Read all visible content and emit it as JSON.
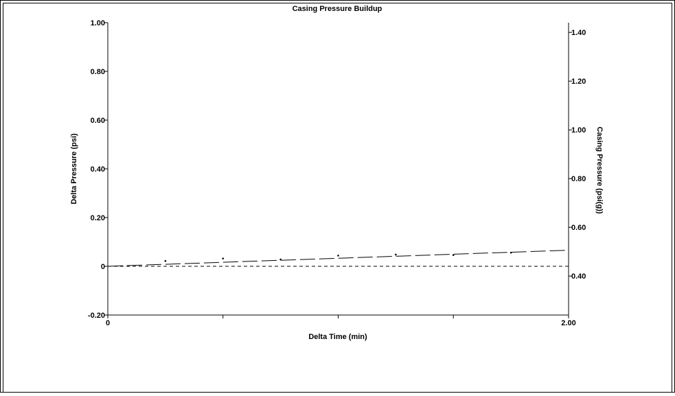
{
  "chart_data": {
    "type": "line",
    "title": "Casing Pressure Buildup",
    "xlabel": "Delta Time (min)",
    "ylabel": "Delta Pressure (psi)",
    "y2label": "Casing Pressure (psi(g))",
    "xlim": [
      0,
      2.0
    ],
    "ylim": [
      -0.2,
      1.0
    ],
    "y2lim": [
      0.24,
      1.44
    ],
    "x_ticks": [
      {
        "value": 0,
        "label": "0"
      },
      {
        "value": 0.5,
        "label": ""
      },
      {
        "value": 1.0,
        "label": ""
      },
      {
        "value": 1.5,
        "label": ""
      },
      {
        "value": 2.0,
        "label": "2.00"
      }
    ],
    "y_ticks": [
      {
        "value": -0.2,
        "label": "-0.20"
      },
      {
        "value": 0,
        "label": "0"
      },
      {
        "value": 0.2,
        "label": "0.20"
      },
      {
        "value": 0.4,
        "label": "0.40"
      },
      {
        "value": 0.6,
        "label": "0.60"
      },
      {
        "value": 0.8,
        "label": "0.80"
      },
      {
        "value": 1.0,
        "label": "1.00"
      }
    ],
    "y2_ticks": [
      {
        "value": 0.4,
        "label": "0.40"
      },
      {
        "value": 0.6,
        "label": "0.60"
      },
      {
        "value": 0.8,
        "label": "0.80"
      },
      {
        "value": 1.0,
        "label": "1.00"
      },
      {
        "value": 1.2,
        "label": "1.20"
      },
      {
        "value": 1.4,
        "label": "1.40"
      }
    ],
    "grid": false,
    "series": [
      {
        "style": "points",
        "x": [
          0.25,
          0.5,
          0.75,
          1.0,
          1.25,
          1.5,
          1.75
        ],
        "y": [
          0.022,
          0.032,
          0.028,
          0.044,
          0.048,
          0.046,
          0.056
        ]
      },
      {
        "style": "long-dash",
        "x": [
          0,
          2.0
        ],
        "y": [
          0,
          0.066
        ]
      },
      {
        "style": "short-dash",
        "x": [
          0,
          2.0
        ],
        "y": [
          0,
          0
        ]
      }
    ]
  }
}
